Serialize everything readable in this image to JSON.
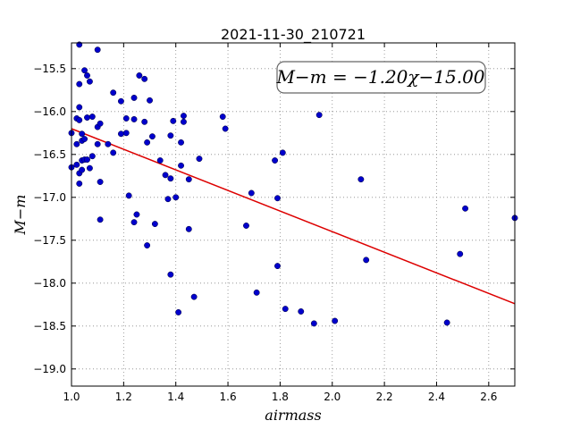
{
  "chart_data": {
    "type": "scatter",
    "title": "2021-11-30_210721",
    "xlabel": "airmass",
    "ylabel": "M−m",
    "xlim": [
      1.0,
      2.7
    ],
    "ylim": [
      -19.2,
      -15.2
    ],
    "xticks": [
      1.0,
      1.2,
      1.4,
      1.6,
      1.8,
      2.0,
      2.2,
      2.4,
      2.6
    ],
    "xtick_labels": [
      "1.0",
      "1.2",
      "1.4",
      "1.6",
      "1.8",
      "2.0",
      "2.2",
      "2.4",
      "2.6"
    ],
    "yticks": [
      -15.5,
      -16.0,
      -16.5,
      -17.0,
      -17.5,
      -18.0,
      -18.5,
      -19.0
    ],
    "ytick_labels": [
      "−15.5",
      "−16.0",
      "−16.5",
      "−17.0",
      "−17.5",
      "−18.0",
      "−18.5",
      "−19.0"
    ],
    "grid": true,
    "fit_label": "M−m = −1.20χ−15.00",
    "fit": {
      "slope": -1.2,
      "intercept": -15.0
    },
    "colors": {
      "points": "#0000cc",
      "fit": "#dd0000",
      "grid": "#888888"
    },
    "points": [
      [
        1.0,
        -16.25
      ],
      [
        1.0,
        -16.65
      ],
      [
        1.02,
        -16.08
      ],
      [
        1.02,
        -16.38
      ],
      [
        1.02,
        -16.62
      ],
      [
        1.03,
        -15.22
      ],
      [
        1.03,
        -15.68
      ],
      [
        1.03,
        -15.95
      ],
      [
        1.03,
        -16.1
      ],
      [
        1.03,
        -16.72
      ],
      [
        1.03,
        -16.84
      ],
      [
        1.04,
        -16.26
      ],
      [
        1.04,
        -16.34
      ],
      [
        1.04,
        -16.57
      ],
      [
        1.04,
        -16.68
      ],
      [
        1.05,
        -15.52
      ],
      [
        1.05,
        -16.32
      ],
      [
        1.05,
        -16.56
      ],
      [
        1.06,
        -15.58
      ],
      [
        1.06,
        -16.07
      ],
      [
        1.06,
        -16.56
      ],
      [
        1.07,
        -15.65
      ],
      [
        1.07,
        -16.66
      ],
      [
        1.08,
        -16.06
      ],
      [
        1.08,
        -16.52
      ],
      [
        1.1,
        -15.28
      ],
      [
        1.1,
        -16.18
      ],
      [
        1.1,
        -16.38
      ],
      [
        1.11,
        -16.14
      ],
      [
        1.11,
        -16.82
      ],
      [
        1.11,
        -17.26
      ],
      [
        1.14,
        -16.38
      ],
      [
        1.16,
        -15.78
      ],
      [
        1.16,
        -16.48
      ],
      [
        1.19,
        -15.88
      ],
      [
        1.19,
        -16.26
      ],
      [
        1.21,
        -16.08
      ],
      [
        1.21,
        -16.25
      ],
      [
        1.22,
        -16.98
      ],
      [
        1.24,
        -15.84
      ],
      [
        1.24,
        -16.09
      ],
      [
        1.24,
        -17.29
      ],
      [
        1.25,
        -17.2
      ],
      [
        1.26,
        -15.58
      ],
      [
        1.28,
        -16.12
      ],
      [
        1.28,
        -15.62
      ],
      [
        1.29,
        -16.36
      ],
      [
        1.29,
        -17.56
      ],
      [
        1.3,
        -15.87
      ],
      [
        1.31,
        -16.29
      ],
      [
        1.32,
        -17.31
      ],
      [
        1.34,
        -16.57
      ],
      [
        1.36,
        -16.74
      ],
      [
        1.37,
        -17.02
      ],
      [
        1.38,
        -16.28
      ],
      [
        1.38,
        -16.78
      ],
      [
        1.38,
        -17.9
      ],
      [
        1.39,
        -16.11
      ],
      [
        1.4,
        -17.0
      ],
      [
        1.41,
        -18.34
      ],
      [
        1.42,
        -16.36
      ],
      [
        1.42,
        -16.63
      ],
      [
        1.43,
        -16.05
      ],
      [
        1.43,
        -16.12
      ],
      [
        1.45,
        -16.79
      ],
      [
        1.45,
        -17.37
      ],
      [
        1.47,
        -18.16
      ],
      [
        1.49,
        -16.55
      ],
      [
        1.58,
        -16.06
      ],
      [
        1.59,
        -16.2
      ],
      [
        1.67,
        -17.33
      ],
      [
        1.69,
        -16.95
      ],
      [
        1.71,
        -18.11
      ],
      [
        1.78,
        -16.57
      ],
      [
        1.79,
        -17.01
      ],
      [
        1.79,
        -17.8
      ],
      [
        1.81,
        -16.48
      ],
      [
        1.82,
        -18.3
      ],
      [
        1.88,
        -18.33
      ],
      [
        1.93,
        -18.47
      ],
      [
        1.95,
        -16.04
      ],
      [
        2.01,
        -18.44
      ],
      [
        2.11,
        -16.79
      ],
      [
        2.13,
        -17.73
      ],
      [
        2.44,
        -18.46
      ],
      [
        2.49,
        -17.66
      ],
      [
        2.51,
        -17.13
      ],
      [
        2.7,
        -17.24
      ]
    ]
  }
}
